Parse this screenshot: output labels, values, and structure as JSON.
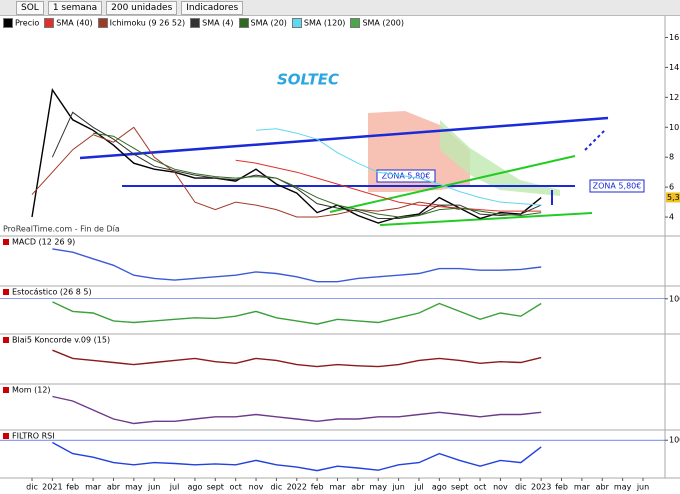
{
  "toolbar": {
    "symbol": "SOL",
    "period": "1 semana",
    "units": "200 unidades",
    "indicators": "Indicadores"
  },
  "source": "ProRealTime.com - Fin de Día",
  "chart_data": [
    {
      "type": "line",
      "title": "SOLTEC",
      "categories": [
        "dic",
        "2021",
        "feb",
        "mar",
        "abr",
        "may",
        "jun",
        "jul",
        "ago",
        "sept",
        "oct",
        "nov",
        "dic",
        "2022",
        "feb",
        "mar",
        "abr",
        "may",
        "jun",
        "jul",
        "ago",
        "sept",
        "oct",
        "nov",
        "dic",
        "2023",
        "feb",
        "mar",
        "abr",
        "may",
        "jun"
      ],
      "ylim": [
        2.8,
        16.5
      ],
      "yticks": [
        4,
        6,
        8,
        10,
        12,
        14,
        16
      ],
      "series": [
        {
          "name": "Precio",
          "color": "#000000",
          "values": [
            4.0,
            12.5,
            10.5,
            9.8,
            8.8,
            7.6,
            7.2,
            7.0,
            6.6,
            6.6,
            6.4,
            7.2,
            6.2,
            5.6,
            4.3,
            4.8,
            4.1,
            3.6,
            4.0,
            4.2,
            5.3,
            4.6,
            3.9,
            4.3,
            4.2,
            5.3,
            null,
            null,
            null,
            null,
            null
          ]
        },
        {
          "name": "SMA (40)",
          "color": "#e0302b",
          "values": [
            null,
            null,
            null,
            null,
            null,
            null,
            null,
            null,
            null,
            null,
            7.8,
            7.6,
            7.3,
            7.0,
            6.6,
            6.2,
            5.8,
            5.4,
            5.0,
            4.8,
            4.7,
            4.6,
            4.5,
            4.4,
            4.4,
            4.4,
            null,
            null,
            null,
            null,
            null
          ]
        },
        {
          "name": "Ichimoku (9 26 52)",
          "color": "#a03a28",
          "values": [
            5.5,
            7.0,
            8.5,
            9.5,
            9.0,
            10.0,
            8.0,
            7.0,
            5.0,
            4.5,
            5.0,
            4.8,
            4.5,
            4.0,
            4.0,
            4.2,
            4.5,
            4.4,
            4.6,
            5.0,
            4.8,
            4.5,
            null,
            null,
            null,
            null,
            null,
            null,
            null,
            null,
            null
          ]
        },
        {
          "name": "SMA (4)",
          "color": "#333333",
          "values": [
            null,
            8.0,
            11.0,
            10.0,
            9.2,
            8.2,
            7.4,
            7.1,
            6.8,
            6.6,
            6.5,
            6.8,
            6.6,
            5.9,
            4.9,
            4.6,
            4.4,
            3.9,
            3.9,
            4.1,
            4.8,
            4.8,
            4.2,
            4.1,
            4.2,
            4.8,
            null,
            null,
            null,
            null,
            null
          ]
        },
        {
          "name": "SMA (20)",
          "color": "#2e6b1e",
          "values": [
            null,
            null,
            null,
            9.6,
            9.4,
            8.6,
            7.8,
            7.2,
            6.9,
            6.7,
            6.6,
            6.7,
            6.6,
            6.0,
            5.3,
            4.8,
            4.5,
            4.2,
            4.0,
            4.1,
            4.5,
            4.6,
            4.4,
            4.2,
            4.1,
            4.3,
            null,
            null,
            null,
            null,
            null
          ]
        },
        {
          "name": "SMA (120)",
          "color": "#5fd8f0",
          "values": [
            null,
            null,
            null,
            null,
            null,
            null,
            null,
            null,
            null,
            null,
            null,
            9.8,
            9.9,
            9.6,
            9.2,
            8.3,
            7.6,
            7.0,
            6.8,
            6.6,
            6.2,
            5.7,
            5.3,
            5.0,
            4.9,
            4.8,
            null,
            null,
            null,
            null,
            null
          ]
        },
        {
          "name": "SMA (200)",
          "color": "#4ca64c",
          "values": [
            null,
            null,
            null,
            null,
            null,
            null,
            null,
            null,
            null,
            null,
            null,
            null,
            null,
            null,
            null,
            null,
            null,
            null,
            null,
            null,
            null,
            null,
            null,
            null,
            null,
            null,
            null,
            null,
            null,
            null,
            null
          ]
        }
      ],
      "annotations": [
        "ZONA 5,80€",
        "ZONA 5,80€"
      ],
      "last_price": {
        "value": 5.31,
        "label": "5,31"
      }
    },
    {
      "type": "line",
      "title": "MACD (12 26 9)",
      "ylim": [
        -1,
        1.5
      ],
      "series": [
        {
          "name": "MACD",
          "color": "#3b5bd6",
          "values": [
            null,
            1.2,
            1.0,
            0.6,
            0.2,
            -0.4,
            -0.6,
            -0.7,
            -0.6,
            -0.5,
            -0.4,
            -0.2,
            -0.3,
            -0.5,
            -0.8,
            -0.8,
            -0.6,
            -0.5,
            -0.4,
            -0.3,
            0.0,
            0.0,
            -0.1,
            -0.1,
            -0.05,
            0.1,
            null,
            null,
            null,
            null,
            null
          ]
        }
      ]
    },
    {
      "type": "line",
      "title": "Estocástico (26 8 5)",
      "ylim": [
        -5,
        115
      ],
      "yticks": [
        100
      ],
      "series": [
        {
          "name": "K",
          "color": "#3aa13a",
          "values": [
            null,
            90,
            60,
            55,
            30,
            25,
            30,
            35,
            40,
            38,
            45,
            60,
            40,
            30,
            20,
            35,
            30,
            25,
            40,
            55,
            85,
            60,
            35,
            55,
            45,
            85,
            null,
            null,
            null,
            null,
            null
          ]
        }
      ]
    },
    {
      "type": "line",
      "title": "Blai5 Koncorde v.09 (15)",
      "ylim": [
        0,
        100
      ],
      "series": [
        {
          "name": "Koncorde",
          "color": "#8b1a1a",
          "values": [
            null,
            80,
            60,
            55,
            50,
            45,
            50,
            55,
            60,
            52,
            48,
            60,
            55,
            45,
            40,
            45,
            42,
            40,
            45,
            55,
            60,
            55,
            48,
            52,
            50,
            62,
            null,
            null,
            null,
            null,
            null
          ]
        }
      ]
    },
    {
      "type": "line",
      "title": "Mom (12)",
      "ylim": [
        -6,
        10
      ],
      "series": [
        {
          "name": "Mom",
          "color": "#6b3a8a",
          "values": [
            null,
            8,
            6,
            2,
            -2,
            -4,
            -3,
            -3,
            -2,
            -1,
            -1,
            0,
            -1,
            -2,
            -3,
            -2,
            -2,
            -1,
            -1,
            0,
            1,
            0,
            -1,
            0,
            0,
            1,
            null,
            null,
            null,
            null,
            null
          ]
        }
      ]
    },
    {
      "type": "line",
      "title": "FILTRO RSI",
      "ylim": [
        20,
        105
      ],
      "yticks": [
        100
      ],
      "series": [
        {
          "name": "RSI",
          "color": "#2040e0",
          "values": [
            null,
            95,
            70,
            62,
            50,
            45,
            50,
            48,
            45,
            47,
            45,
            55,
            45,
            40,
            32,
            42,
            38,
            33,
            45,
            50,
            70,
            55,
            42,
            55,
            50,
            85,
            null,
            null,
            null,
            null,
            null
          ]
        }
      ]
    }
  ]
}
